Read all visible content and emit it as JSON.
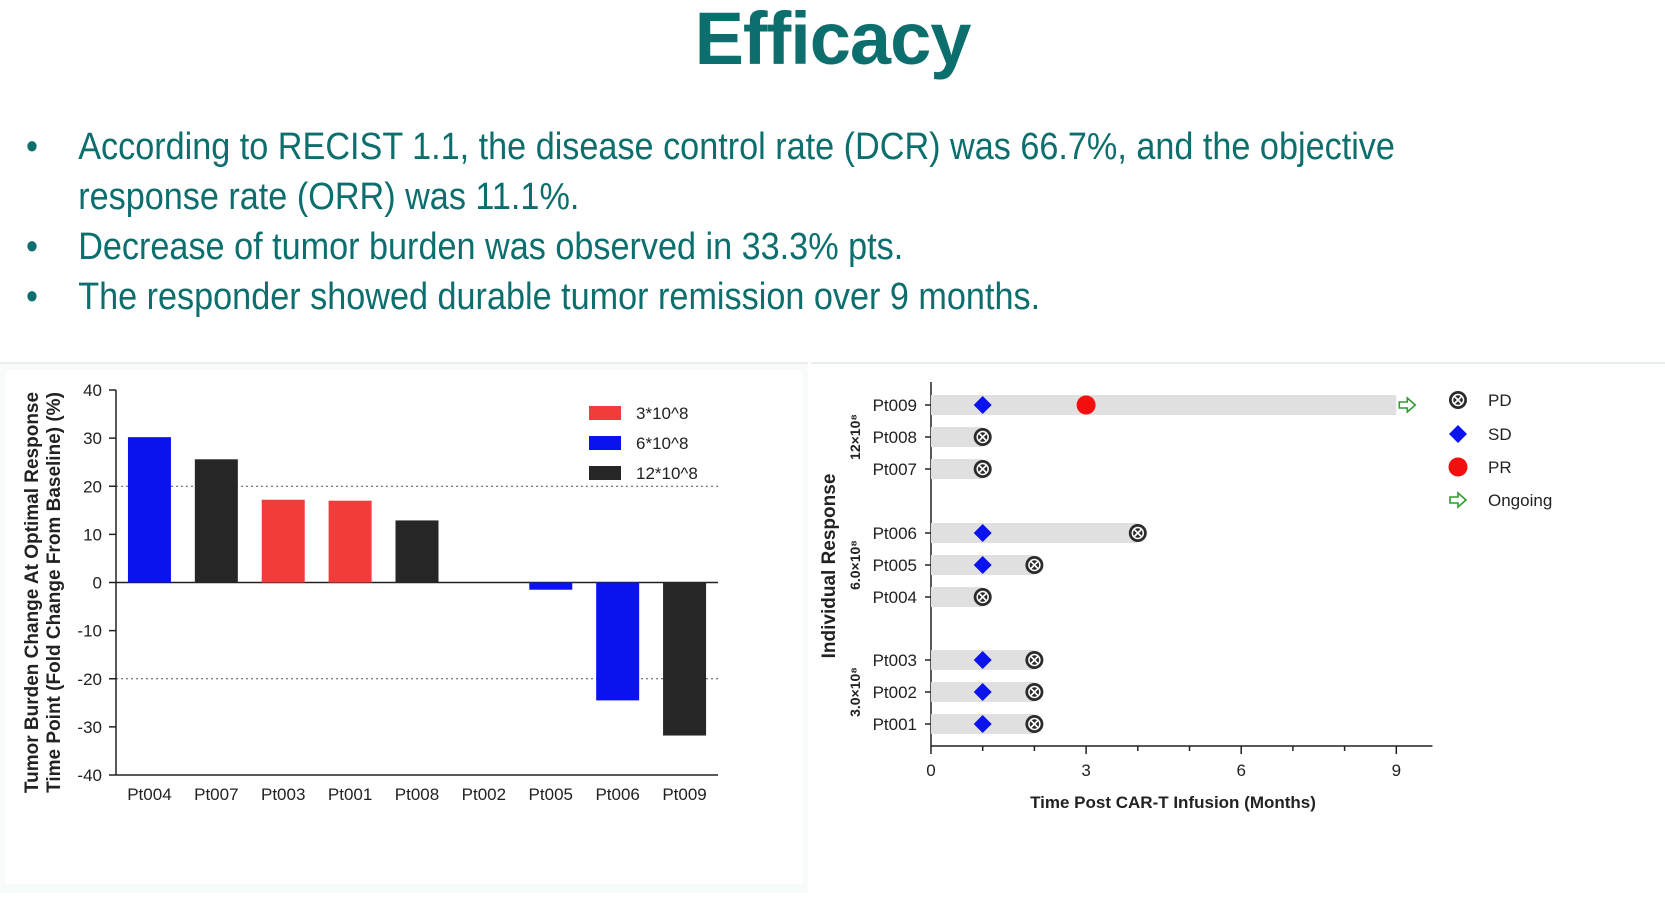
{
  "slide": {
    "title": "Efficacy",
    "bullet_symbol": "•",
    "bullets": [
      "According to RECIST 1.1, the disease control rate (DCR) was 66.7%, and the objective",
      "response rate (ORR) was 11.1%.",
      "Decrease of tumor burden was observed in 33.3% pts.",
      "The responder showed durable tumor remission over 9 months."
    ]
  },
  "colors": {
    "title": "#0d6e6e",
    "dose_3e8": "#f23b3b",
    "dose_6e8": "#0a12ee",
    "dose_12e8": "#262626",
    "pr_marker": "#f20f0f",
    "sd_marker": "#0a12ee",
    "ongoing_arrow": "#2e9d2e",
    "swimmer_bar": "#e0e0e0"
  },
  "chart_data": [
    {
      "type": "bar",
      "ylabel": "Tumor Burden Change At Optimal Response Time Point (Fold Change From Baseline) (%)",
      "ylabel_lines": [
        "Tumor Burden Change At Optimal Response",
        "Time Point (Fold Change From Baseline) (%)"
      ],
      "xlabel": "",
      "ylim": [
        -40,
        40
      ],
      "yticks": [
        40,
        30,
        20,
        10,
        0,
        -10,
        -20,
        -30,
        -40
      ],
      "reference_lines": [
        20,
        -20
      ],
      "categories": [
        "Pt004",
        "Pt007",
        "Pt003",
        "Pt001",
        "Pt008",
        "Pt002",
        "Pt005",
        "Pt006",
        "Pt009"
      ],
      "values": [
        30.2,
        25.6,
        17.2,
        17.0,
        12.9,
        0.0,
        -1.5,
        -24.5,
        -31.8
      ],
      "dose_group": [
        "6*10^8",
        "12*10^8",
        "3*10^8",
        "3*10^8",
        "12*10^8",
        "3*10^8",
        "6*10^8",
        "6*10^8",
        "12*10^8"
      ],
      "legend": [
        {
          "label": "3*10^8",
          "color": "#f23b3b"
        },
        {
          "label": "6*10^8",
          "color": "#0a12ee"
        },
        {
          "label": "12*10^8",
          "color": "#262626"
        }
      ],
      "legend_position": "top-right",
      "grid": false
    },
    {
      "type": "swimmer",
      "xlabel": "Time Post CAR-T Infusion (Months)",
      "ylabel": "Individual Response",
      "xlim": [
        0,
        10
      ],
      "xticks": [
        0,
        3,
        6,
        9
      ],
      "groups": [
        {
          "label": "12×10^8",
          "patients": [
            "Pt009",
            "Pt008",
            "Pt007"
          ]
        },
        {
          "label": "6.0×10^8",
          "patients": [
            "Pt006",
            "Pt005",
            "Pt004"
          ]
        },
        {
          "label": "3.0×10^8",
          "patients": [
            "Pt003",
            "Pt002",
            "Pt001"
          ]
        }
      ],
      "patients": [
        {
          "id": "Pt009",
          "duration": 9.0,
          "events": [
            {
              "t": 1.0,
              "type": "SD"
            },
            {
              "t": 3.0,
              "type": "PR"
            }
          ],
          "ongoing": true
        },
        {
          "id": "Pt008",
          "duration": 1.0,
          "events": [
            {
              "t": 1.0,
              "type": "PD"
            }
          ],
          "ongoing": false
        },
        {
          "id": "Pt007",
          "duration": 1.0,
          "events": [
            {
              "t": 1.0,
              "type": "PD"
            }
          ],
          "ongoing": false
        },
        {
          "id": "Pt006",
          "duration": 4.0,
          "events": [
            {
              "t": 1.0,
              "type": "SD"
            },
            {
              "t": 4.0,
              "type": "PD"
            }
          ],
          "ongoing": false
        },
        {
          "id": "Pt005",
          "duration": 2.0,
          "events": [
            {
              "t": 1.0,
              "type": "SD"
            },
            {
              "t": 2.0,
              "type": "PD"
            }
          ],
          "ongoing": false
        },
        {
          "id": "Pt004",
          "duration": 1.0,
          "events": [
            {
              "t": 1.0,
              "type": "PD"
            }
          ],
          "ongoing": false
        },
        {
          "id": "Pt003",
          "duration": 2.0,
          "events": [
            {
              "t": 1.0,
              "type": "SD"
            },
            {
              "t": 2.0,
              "type": "PD"
            }
          ],
          "ongoing": false
        },
        {
          "id": "Pt002",
          "duration": 2.0,
          "events": [
            {
              "t": 1.0,
              "type": "SD"
            },
            {
              "t": 2.0,
              "type": "PD"
            }
          ],
          "ongoing": false
        },
        {
          "id": "Pt001",
          "duration": 2.0,
          "events": [
            {
              "t": 1.0,
              "type": "SD"
            },
            {
              "t": 2.0,
              "type": "PD"
            }
          ],
          "ongoing": false
        }
      ],
      "legend": [
        {
          "label": "PD",
          "marker": "circle-x-icon"
        },
        {
          "label": "SD",
          "marker": "diamond-icon"
        },
        {
          "label": "PR",
          "marker": "red-circle-icon"
        },
        {
          "label": "Ongoing",
          "marker": "arrow-right-icon"
        }
      ],
      "legend_position": "right"
    }
  ]
}
